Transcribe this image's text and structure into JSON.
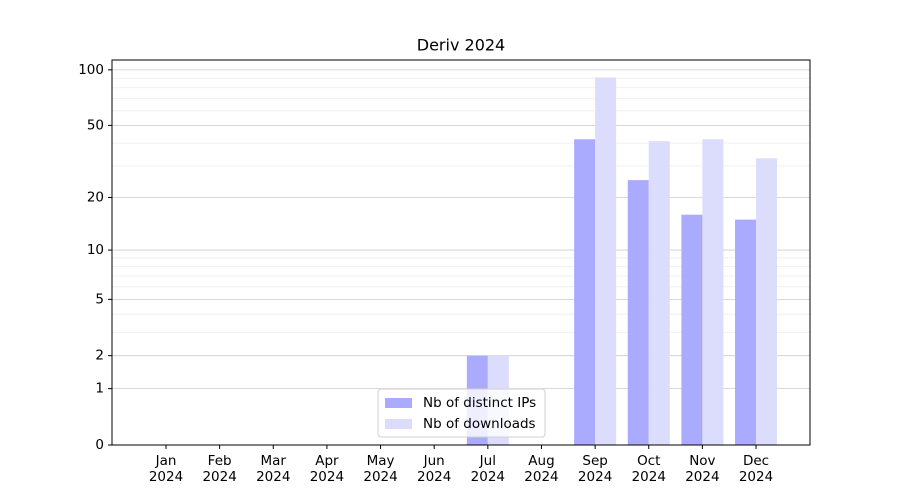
{
  "chart_data": {
    "type": "bar",
    "title": "Deriv 2024",
    "y_scale": "log1p",
    "categories": [
      "Jan\n2024",
      "Feb\n2024",
      "Mar\n2024",
      "Apr\n2024",
      "May\n2024",
      "Jun\n2024",
      "Jul\n2024",
      "Aug\n2024",
      "Sep\n2024",
      "Oct\n2024",
      "Nov\n2024",
      "Dec\n2024"
    ],
    "series": [
      {
        "name": "Nb of distinct IPs",
        "color": "#aaaaff",
        "values": [
          0,
          0,
          0,
          0,
          0,
          0,
          2,
          0,
          42,
          25,
          16,
          15
        ]
      },
      {
        "name": "Nb of downloads",
        "color": "#dcdcfc",
        "values": [
          0,
          0,
          0,
          0,
          0,
          0,
          2,
          0,
          91,
          41,
          42,
          33
        ]
      }
    ],
    "ylim": [
      0,
      113
    ],
    "yticks": [
      0,
      1,
      2,
      5,
      10,
      20,
      50,
      100
    ],
    "minor_yticks": [
      3,
      4,
      6,
      7,
      8,
      9,
      30,
      40,
      60,
      70,
      80,
      90
    ],
    "grid": true,
    "legend": "lower center"
  }
}
